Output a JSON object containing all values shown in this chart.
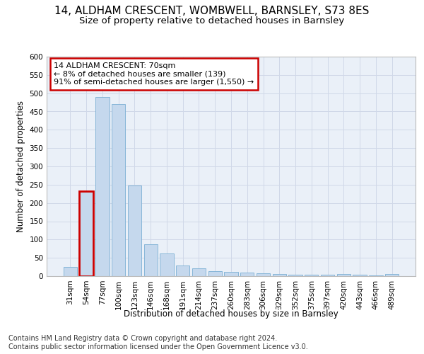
{
  "title_line1": "14, ALDHAM CRESCENT, WOMBWELL, BARNSLEY, S73 8ES",
  "title_line2": "Size of property relative to detached houses in Barnsley",
  "xlabel": "Distribution of detached houses by size in Barnsley",
  "ylabel": "Number of detached properties",
  "categories": [
    "31sqm",
    "54sqm",
    "77sqm",
    "100sqm",
    "123sqm",
    "146sqm",
    "168sqm",
    "191sqm",
    "214sqm",
    "237sqm",
    "260sqm",
    "283sqm",
    "306sqm",
    "329sqm",
    "352sqm",
    "375sqm",
    "397sqm",
    "420sqm",
    "443sqm",
    "466sqm",
    "489sqm"
  ],
  "values": [
    25,
    232,
    490,
    470,
    248,
    88,
    62,
    30,
    22,
    13,
    11,
    10,
    8,
    5,
    4,
    4,
    4,
    6,
    4,
    1,
    5
  ],
  "bar_color": "#c5d8ed",
  "bar_edge_color": "#7aafd4",
  "highlight_bar_index": 1,
  "highlight_bar_edge_color": "#cc0000",
  "highlight_bar_edge_width": 2.0,
  "ylim": [
    0,
    600
  ],
  "yticks": [
    0,
    50,
    100,
    150,
    200,
    250,
    300,
    350,
    400,
    450,
    500,
    550,
    600
  ],
  "annotation_box_text_line1": "14 ALDHAM CRESCENT: 70sqm",
  "annotation_box_text_line2": "← 8% of detached houses are smaller (139)",
  "annotation_box_text_line3": "91% of semi-detached houses are larger (1,550) →",
  "annotation_box_edge_color": "#cc0000",
  "annotation_box_bg_color": "#ffffff",
  "grid_color": "#d0d8e8",
  "background_color": "#eaf0f8",
  "footer_line1": "Contains HM Land Registry data © Crown copyright and database right 2024.",
  "footer_line2": "Contains public sector information licensed under the Open Government Licence v3.0.",
  "title_fontsize": 11,
  "subtitle_fontsize": 9.5,
  "axis_label_fontsize": 8.5,
  "tick_fontsize": 7.5,
  "annotation_fontsize": 8,
  "footer_fontsize": 7
}
